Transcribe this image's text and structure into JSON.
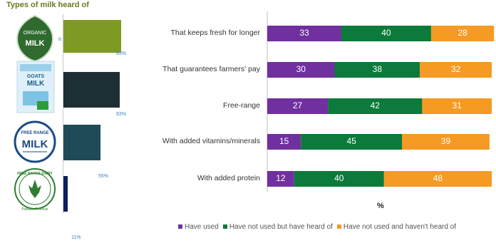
{
  "left_panel": {
    "title": "Types of milk heard of",
    "bar_colors": [
      "#7f9a24",
      "#1e2f33",
      "#1f4a57",
      "#0d1f5c"
    ],
    "items": [
      {
        "logo": "organic-milk-logo",
        "logo_text_1": "ORGANIC",
        "logo_text_2": "MILK",
        "logo_text_3": "ic",
        "value": 85,
        "label": "85%"
      },
      {
        "logo": "goats-milk-carton",
        "logo_text_1": "GOATS",
        "logo_text_2": "MILK",
        "value": 83,
        "label": "83%"
      },
      {
        "logo": "free-range-milk-logo",
        "logo_text_1": "FREE RANGE",
        "logo_text_2": "MILK",
        "value": 55,
        "label": "55%"
      },
      {
        "logo": "free-range-dairy-logo",
        "logo_text_1": "FREE RANGE DAIRY",
        "logo_text_2": "Pasture Promise",
        "value": 11,
        "label": "11%"
      }
    ]
  },
  "chart_data": {
    "type": "bar",
    "orientation": "horizontal",
    "stacked": true,
    "categories": [
      "That keeps fresh for longer",
      "That guarantees farmers' pay",
      "Free-range",
      "With added vitamins/minerals",
      "With added protein"
    ],
    "series": [
      {
        "name": "Have used",
        "color": "#7030a0",
        "values": [
          33,
          30,
          27,
          15,
          12
        ]
      },
      {
        "name": "Have not used but have heard of",
        "color": "#0b7a3a",
        "values": [
          40,
          38,
          42,
          45,
          40
        ]
      },
      {
        "name": "Have not used and haven't heard of",
        "color": "#f59a23",
        "values": [
          28,
          32,
          31,
          39,
          48
        ]
      }
    ],
    "xlabel": "%",
    "xlim": [
      0,
      100
    ],
    "legend_position": "bottom"
  }
}
